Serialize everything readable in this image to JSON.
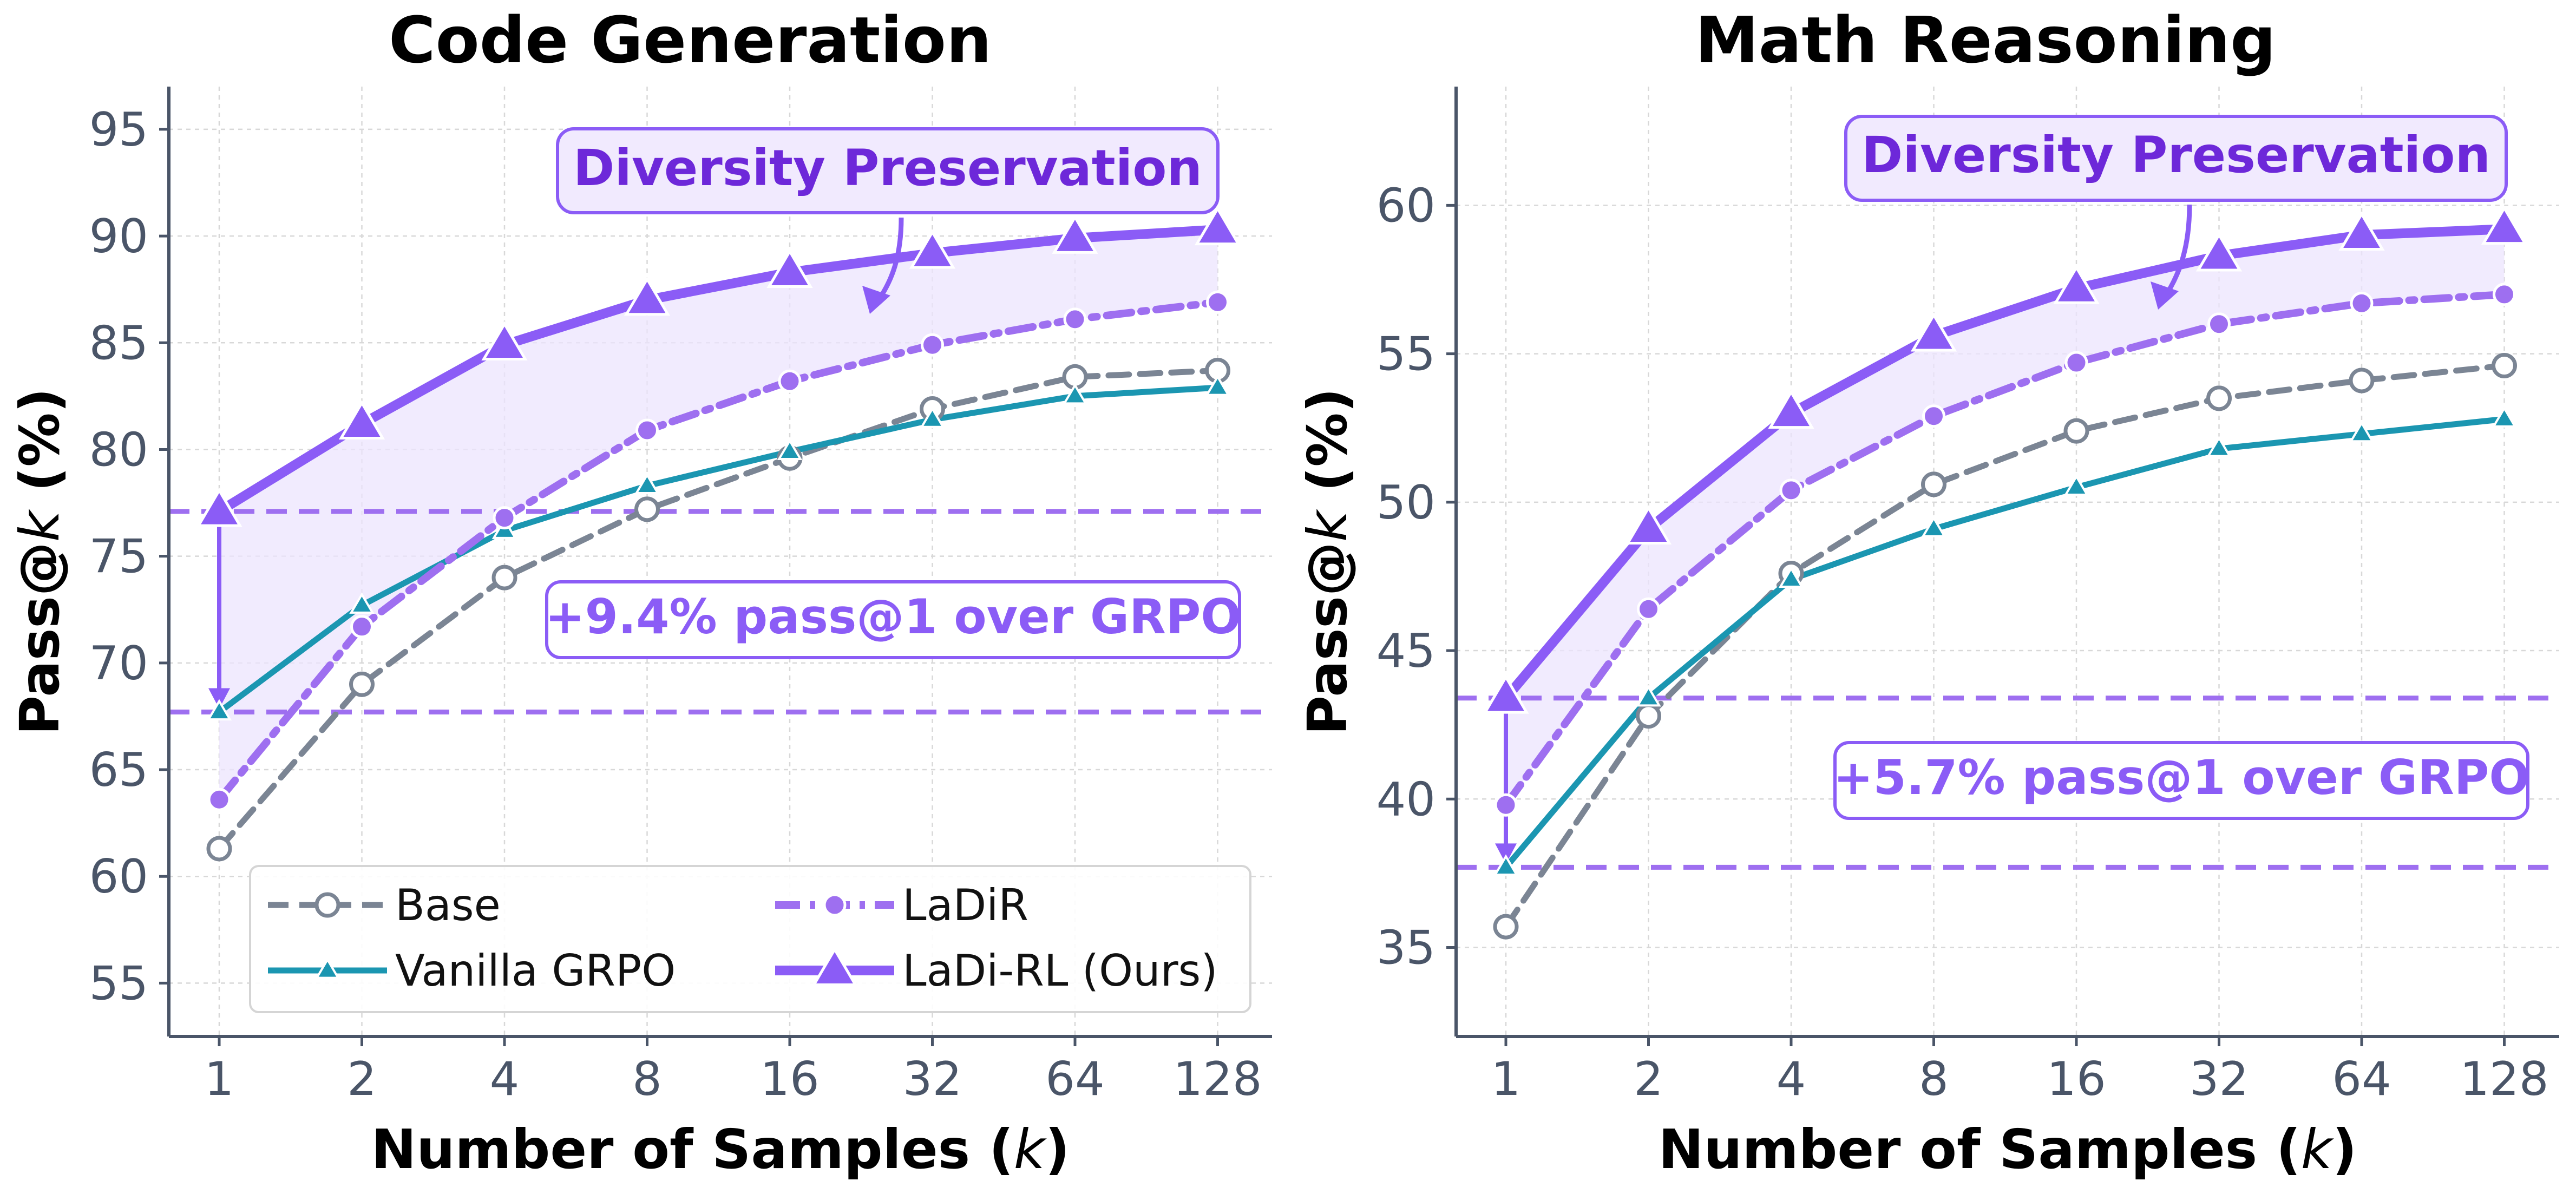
{
  "chart_data": [
    {
      "type": "line",
      "title": "Code Generation",
      "xlabel": "Number of Samples",
      "xlabel_var": "k",
      "ylabel": "Pass@",
      "ylabel_var": "k",
      "ylabel_unit": "(%)",
      "categories": [
        "1",
        "2",
        "4",
        "8",
        "16",
        "32",
        "64",
        "128"
      ],
      "ylim": [
        52.5,
        97
      ],
      "yticks": [
        55,
        60,
        65,
        70,
        75,
        80,
        85,
        90,
        95
      ],
      "series": [
        {
          "name": "Base",
          "values": [
            61.3,
            69.0,
            74.0,
            77.2,
            79.6,
            81.9,
            83.4,
            83.7
          ]
        },
        {
          "name": "Vanilla GRPO",
          "values": [
            67.7,
            72.7,
            76.2,
            78.3,
            79.9,
            81.4,
            82.5,
            82.9
          ]
        },
        {
          "name": "LaDiR",
          "values": [
            63.6,
            71.7,
            76.8,
            80.9,
            83.2,
            84.9,
            86.1,
            86.9
          ]
        },
        {
          "name": "LaDi-RL (Ours)",
          "values": [
            77.1,
            81.2,
            84.9,
            87.0,
            88.3,
            89.2,
            89.9,
            90.3
          ]
        }
      ],
      "reference_lines": [
        77.1,
        67.7
      ],
      "annotations": {
        "diversity": "Diversity Preservation",
        "gain": "+9.4% pass@1 over GRPO"
      },
      "legend": {
        "position": "lower-right",
        "entries": [
          "Base",
          "LaDiR",
          "Vanilla GRPO",
          "LaDi-RL (Ours)"
        ]
      }
    },
    {
      "type": "line",
      "title": "Math Reasoning",
      "xlabel": "Number of Samples",
      "xlabel_var": "k",
      "ylabel": "Pass@",
      "ylabel_var": "k",
      "ylabel_unit": "(%)",
      "categories": [
        "1",
        "2",
        "4",
        "8",
        "16",
        "32",
        "64",
        "128"
      ],
      "ylim": [
        32,
        64
      ],
      "yticks": [
        35,
        40,
        45,
        50,
        55,
        60
      ],
      "series": [
        {
          "name": "Base",
          "values": [
            35.7,
            42.8,
            47.6,
            50.6,
            52.4,
            53.5,
            54.1,
            54.6
          ]
        },
        {
          "name": "Vanilla GRPO",
          "values": [
            37.7,
            43.4,
            47.4,
            49.1,
            50.5,
            51.8,
            52.3,
            52.8
          ]
        },
        {
          "name": "LaDiR",
          "values": [
            39.8,
            46.4,
            50.4,
            52.9,
            54.7,
            56.0,
            56.7,
            57.0
          ]
        },
        {
          "name": "LaDi-RL (Ours)",
          "values": [
            43.4,
            49.1,
            53.0,
            55.6,
            57.2,
            58.3,
            59.0,
            59.2
          ]
        }
      ],
      "reference_lines": [
        43.4,
        37.7
      ],
      "annotations": {
        "diversity": "Diversity Preservation",
        "gain": "+5.7% pass@1 over GRPO"
      }
    }
  ],
  "colors": {
    "base": "#7b8594",
    "grpo": "#1b96b1",
    "ladir": "#9e6ff0",
    "ladirl": "#8b5cf6",
    "band": "#ece4fd",
    "refline": "#9e6ff0",
    "box_fill": "#f1eafe",
    "box_stroke": "#8b5cf6",
    "gain_box_fill": "#ffffff"
  }
}
